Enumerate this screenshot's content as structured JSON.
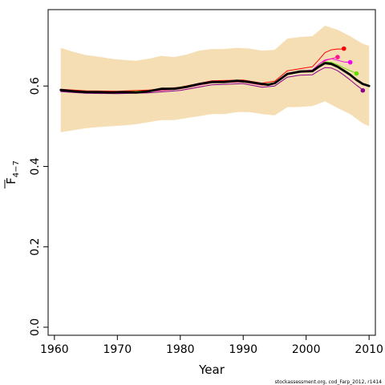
{
  "chart_data": {
    "type": "line",
    "title": "",
    "xlabel": "Year",
    "ylabel": "F̄ 4−7",
    "ylabel_main": "F",
    "ylabel_sub": "4−7",
    "footnote": "stockassessment.org, cod_Farp_2012, r1414",
    "xlim": [
      1959,
      2011
    ],
    "ylim": [
      -0.02,
      0.79
    ],
    "x_ticks": [
      1960,
      1970,
      1980,
      1990,
      2000,
      2010
    ],
    "y_ticks": [
      0.0,
      0.2,
      0.4,
      0.6
    ],
    "y_tick_labels": [
      "0.0",
      "0.2",
      "0.4",
      "0.6"
    ],
    "x_tick_labels": [
      "1960",
      "1970",
      "1980",
      "1990",
      "2000",
      "2010"
    ],
    "grid": false,
    "colors": {
      "band": "#f5deb3",
      "main": "#000000",
      "peels": [
        "#ff0000",
        "#ee00ee",
        "#ff1493",
        "#66dd00",
        "#8b008b"
      ]
    },
    "confidence_band": {
      "x": [
        1961,
        1963,
        1965,
        1967,
        1969,
        1971,
        1973,
        1975,
        1977,
        1979,
        1981,
        1983,
        1985,
        1987,
        1989,
        1991,
        1993,
        1995,
        1997,
        1999,
        2001,
        2003,
        2005,
        2007,
        2009,
        2010
      ],
      "lower": [
        0.485,
        0.49,
        0.495,
        0.498,
        0.5,
        0.502,
        0.505,
        0.51,
        0.515,
        0.515,
        0.52,
        0.525,
        0.53,
        0.53,
        0.535,
        0.535,
        0.53,
        0.527,
        0.547,
        0.548,
        0.55,
        0.562,
        0.545,
        0.53,
        0.507,
        0.5
      ],
      "upper": [
        0.695,
        0.685,
        0.677,
        0.673,
        0.668,
        0.665,
        0.663,
        0.668,
        0.675,
        0.672,
        0.678,
        0.688,
        0.692,
        0.692,
        0.695,
        0.693,
        0.688,
        0.69,
        0.718,
        0.722,
        0.724,
        0.75,
        0.74,
        0.724,
        0.705,
        0.7
      ]
    },
    "series": [
      {
        "role": "main",
        "color": "#000000",
        "x": [
          1961,
          1963,
          1965,
          1967,
          1969,
          1971,
          1973,
          1975,
          1977,
          1979,
          1981,
          1983,
          1985,
          1987,
          1989,
          1991,
          1993,
          1994,
          1995,
          1997,
          1999,
          2001,
          2002,
          2003,
          2004,
          2005,
          2006,
          2007,
          2008,
          2009,
          2010
        ],
        "values": [
          0.59,
          0.587,
          0.585,
          0.585,
          0.584,
          0.585,
          0.584,
          0.587,
          0.593,
          0.593,
          0.598,
          0.605,
          0.61,
          0.61,
          0.613,
          0.61,
          0.605,
          0.603,
          0.607,
          0.63,
          0.636,
          0.637,
          0.648,
          0.657,
          0.655,
          0.648,
          0.638,
          0.628,
          0.615,
          0.605,
          0.6
        ]
      },
      {
        "role": "peel",
        "color": "#ff0000",
        "x": [
          1961,
          1965,
          1970,
          1975,
          1980,
          1985,
          1990,
          1993,
          1995,
          1997,
          1999,
          2001,
          2002,
          2003,
          2004,
          2005,
          2006
        ],
        "values": [
          0.592,
          0.588,
          0.587,
          0.59,
          0.597,
          0.613,
          0.615,
          0.607,
          0.612,
          0.638,
          0.643,
          0.648,
          0.665,
          0.683,
          0.69,
          0.692,
          0.692
        ],
        "end": {
          "x": 2006,
          "y": 0.693
        }
      },
      {
        "role": "peel",
        "color": "#ee00ee",
        "x": [
          1961,
          1965,
          1970,
          1975,
          1980,
          1985,
          1990,
          1993,
          1995,
          1997,
          1999,
          2001,
          2002,
          2003,
          2004,
          2005,
          2006,
          2007
        ],
        "values": [
          0.589,
          0.585,
          0.584,
          0.587,
          0.594,
          0.609,
          0.611,
          0.603,
          0.608,
          0.632,
          0.637,
          0.64,
          0.654,
          0.665,
          0.668,
          0.664,
          0.66,
          0.659
        ],
        "end": {
          "x": 2007,
          "y": 0.659
        }
      },
      {
        "role": "peel",
        "color": "#ff1493",
        "x": [
          1961,
          1965,
          1970,
          1975,
          1980,
          1985,
          1990,
          1993,
          1995,
          1997,
          1999,
          2001,
          2002,
          2003,
          2004,
          2005
        ],
        "values": [
          0.588,
          0.584,
          0.583,
          0.586,
          0.593,
          0.608,
          0.61,
          0.602,
          0.606,
          0.63,
          0.634,
          0.637,
          0.65,
          0.663,
          0.668,
          0.672
        ],
        "end": {
          "x": 2005,
          "y": 0.672
        }
      },
      {
        "role": "peel",
        "color": "#66dd00",
        "x": [
          1961,
          1965,
          1970,
          1975,
          1980,
          1985,
          1990,
          1993,
          1995,
          1997,
          1999,
          2001,
          2002,
          2003,
          2004,
          2005,
          2006,
          2007,
          2008
        ],
        "values": [
          0.59,
          0.586,
          0.585,
          0.588,
          0.595,
          0.61,
          0.612,
          0.604,
          0.608,
          0.631,
          0.636,
          0.638,
          0.651,
          0.66,
          0.659,
          0.653,
          0.645,
          0.638,
          0.632
        ],
        "end": {
          "x": 2008,
          "y": 0.631
        }
      },
      {
        "role": "peel",
        "color": "#8b008b",
        "x": [
          1961,
          1965,
          1970,
          1975,
          1980,
          1985,
          1990,
          1993,
          1995,
          1997,
          1999,
          2001,
          2002,
          2003,
          2004,
          2005,
          2006,
          2007,
          2008,
          2009
        ],
        "values": [
          0.586,
          0.582,
          0.581,
          0.583,
          0.589,
          0.603,
          0.606,
          0.597,
          0.6,
          0.622,
          0.627,
          0.628,
          0.638,
          0.646,
          0.645,
          0.638,
          0.627,
          0.615,
          0.602,
          0.59
        ],
        "end": {
          "x": 2009,
          "y": 0.589
        }
      }
    ]
  }
}
